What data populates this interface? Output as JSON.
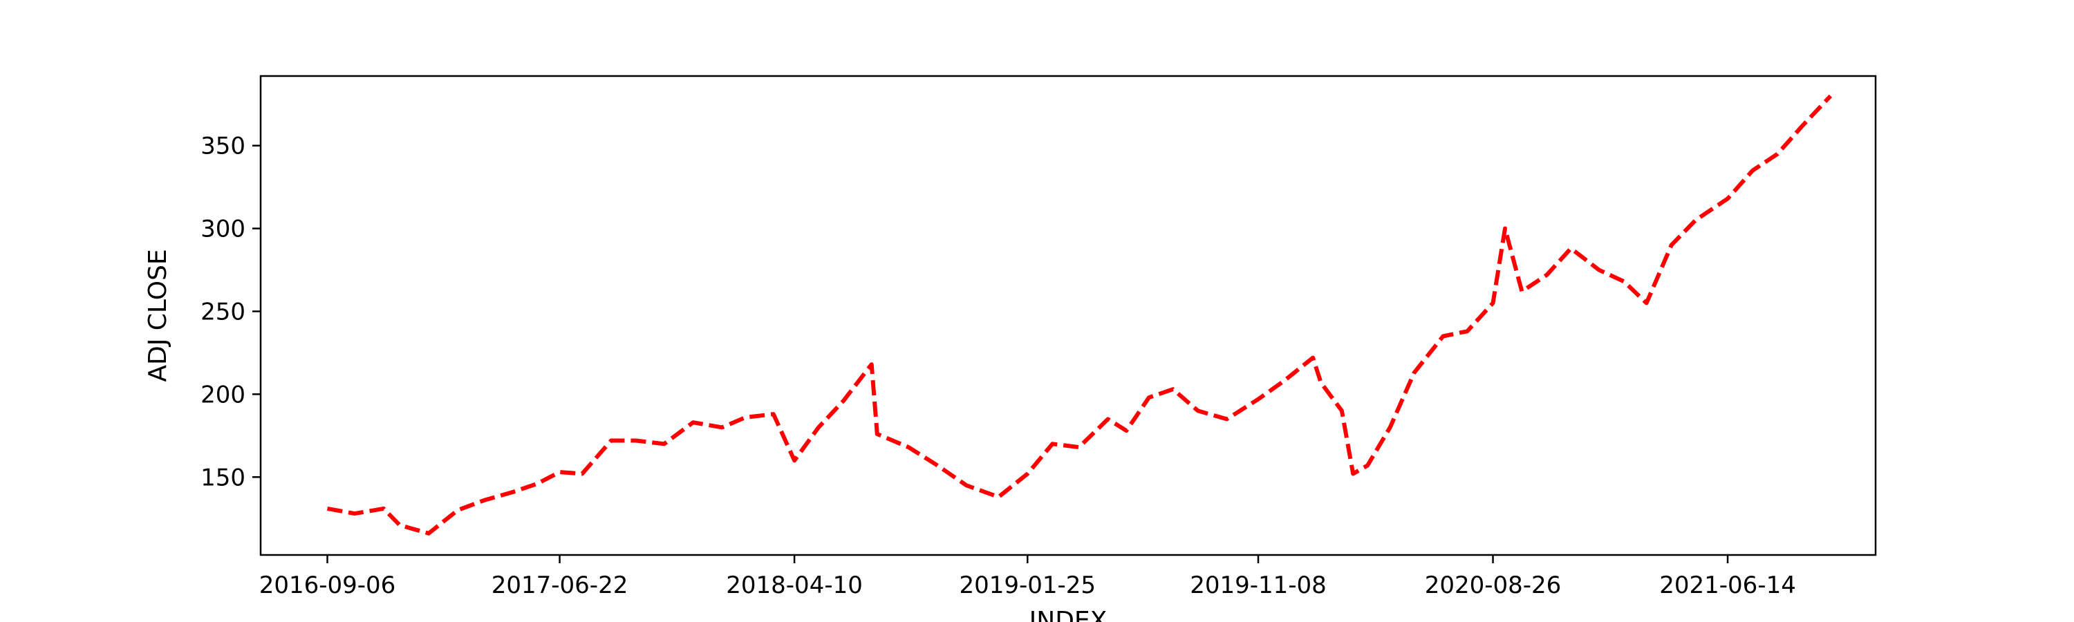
{
  "chart_data": {
    "type": "line",
    "xlabel": "INDEX",
    "ylabel": "ADJ CLOSE",
    "grid": false,
    "legend": "none",
    "xlim": [
      "2016-06-15",
      "2021-12-15"
    ],
    "ylim": [
      103,
      392
    ],
    "x_ticks": [
      "2016-09-06",
      "2017-06-22",
      "2018-04-10",
      "2019-01-25",
      "2019-11-08",
      "2020-08-26",
      "2021-06-14"
    ],
    "y_ticks": [
      150,
      200,
      250,
      300,
      350
    ],
    "series": [
      {
        "color": "#ff0000",
        "line_style": "dashed",
        "x": [
          "2016-09-06",
          "2016-10-10",
          "2016-11-15",
          "2016-12-05",
          "2017-01-10",
          "2017-02-15",
          "2017-03-20",
          "2017-04-25",
          "2017-05-25",
          "2017-06-22",
          "2017-07-20",
          "2017-08-25",
          "2017-09-25",
          "2017-10-30",
          "2017-12-05",
          "2018-01-10",
          "2018-02-08",
          "2018-03-15",
          "2018-04-10",
          "2018-05-10",
          "2018-06-10",
          "2018-07-15",
          "2018-07-22",
          "2018-08-30",
          "2018-10-05",
          "2018-11-10",
          "2018-12-20",
          "2019-01-25",
          "2019-02-25",
          "2019-03-30",
          "2019-05-05",
          "2019-05-28",
          "2019-06-25",
          "2019-07-25",
          "2019-08-25",
          "2019-09-30",
          "2019-11-08",
          "2019-12-10",
          "2020-01-15",
          "2020-01-25",
          "2020-02-20",
          "2020-03-05",
          "2020-03-23",
          "2020-04-20",
          "2020-05-20",
          "2020-06-25",
          "2020-07-25",
          "2020-08-26",
          "2020-09-10",
          "2020-10-01",
          "2020-11-01",
          "2020-12-01",
          "2021-01-05",
          "2021-02-05",
          "2021-03-05",
          "2021-04-05",
          "2021-05-05",
          "2021-06-14",
          "2021-07-15",
          "2021-08-15",
          "2021-09-15",
          "2021-10-20"
        ],
        "y": [
          131,
          128,
          131,
          121,
          116,
          130,
          136,
          141,
          146,
          153,
          152,
          172,
          172,
          170,
          183,
          180,
          186,
          188,
          160,
          180,
          196,
          218,
          176,
          168,
          157,
          145,
          138,
          152,
          170,
          168,
          185,
          178,
          198,
          203,
          190,
          185,
          197,
          208,
          222,
          207,
          190,
          152,
          157,
          180,
          213,
          235,
          238,
          255,
          300,
          262,
          272,
          288,
          275,
          268,
          255,
          290,
          305,
          318,
          335,
          345,
          362,
          380
        ]
      }
    ]
  }
}
